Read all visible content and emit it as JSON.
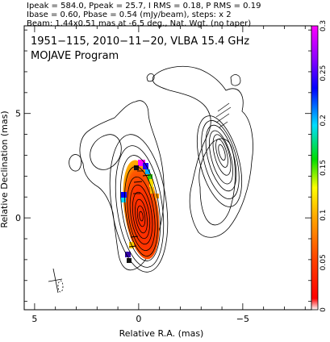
{
  "header": {
    "line1": "Ipeak = 584.0, Ppeak = 25.7, I RMS = 0.18, P RMS = 0.19",
    "line2": "Ibase = 0.60, Pbase = 0.54 (mJy/beam), steps: x 2",
    "line3": "Beam: 1.44x0.51 mas at -6.5 deg., Nat. Wgt. (no taper)"
  },
  "plot_title": {
    "line1": "1951−115, 2010−11−20, VLBA 15.4 GHz",
    "line2": "MOJAVE Program"
  },
  "chart_data": {
    "type": "contour",
    "xlabel": "Relative R.A. (mas)",
    "ylabel": "Relative Declination (mas)",
    "xlim": [
      5.5,
      -8.3
    ],
    "ylim": [
      -4.4,
      9.2
    ],
    "x_ticks": [
      {
        "value": 5,
        "label": "5"
      },
      {
        "value": 0,
        "label": "0"
      },
      {
        "value": -5,
        "label": "−5"
      }
    ],
    "y_ticks": [
      {
        "value": 5,
        "label": "5"
      },
      {
        "value": 0,
        "label": "0"
      }
    ],
    "grid": false,
    "colorbar": {
      "range": [
        0,
        0.3
      ],
      "ticks": [
        {
          "value": 0,
          "label": "0"
        },
        {
          "value": 0.05,
          "label": "0.05"
        },
        {
          "value": 0.1,
          "label": "0.1"
        },
        {
          "value": 0.15,
          "label": "0.15"
        },
        {
          "value": 0.2,
          "label": "0.2"
        },
        {
          "value": 0.25,
          "label": "0.25"
        },
        {
          "value": 0.3,
          "label": "0.3"
        }
      ]
    },
    "core": {
      "ra": 0.0,
      "dec": 0.0,
      "major_mas": 1.44,
      "minor_mas": 0.51,
      "pa_deg": -6.5
    },
    "contour_levels_mjy": [
      0.6,
      1.2,
      2.4,
      4.8,
      9.6,
      19.2,
      38.4,
      76.8,
      153.6,
      307.2
    ],
    "fractional_polarization_color": "red (low) to magenta (high)"
  }
}
